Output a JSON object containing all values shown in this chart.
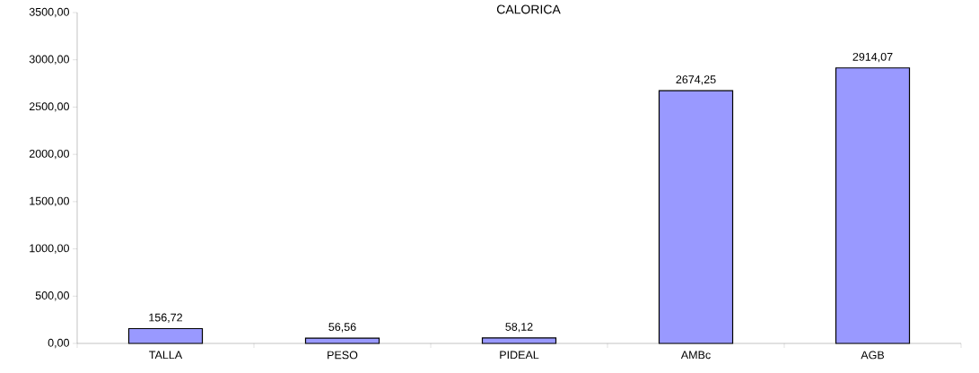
{
  "chart_data": {
    "type": "bar",
    "title": "CALORICA",
    "categories": [
      "TALLA",
      "PESO",
      "PIDEAL",
      "AMBc",
      "AGB"
    ],
    "values": [
      156.72,
      56.56,
      58.12,
      2674.25,
      2914.07
    ],
    "value_labels": [
      "156,72",
      "56,56",
      "58,12",
      "2674,25",
      "2914,07"
    ],
    "color": "#9999ff",
    "ylim": [
      0,
      3500
    ],
    "yticks": [
      {
        "value": 0,
        "label": "0,00"
      },
      {
        "value": 500,
        "label": "500,00"
      },
      {
        "value": 1000,
        "label": "1000,00"
      },
      {
        "value": 1500,
        "label": "1500,00"
      },
      {
        "value": 2000,
        "label": "2000,00"
      },
      {
        "value": 2500,
        "label": "2500,00"
      },
      {
        "value": 3000,
        "label": "3000,00"
      },
      {
        "value": 3500,
        "label": "3500,00"
      }
    ],
    "grid": false
  }
}
